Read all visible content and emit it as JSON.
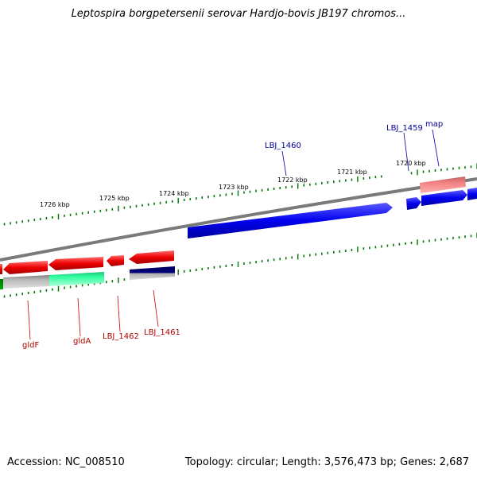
{
  "title": "Leptospira borgpetersenii serovar Hardjo-bovis JB197 chromos...",
  "footer": {
    "accession": "Accession: NC_008510",
    "summary": "Topology: circular; Length: 3,576,473 bp; Genes: 2,687"
  },
  "colors": {
    "forward_gene": "#0000ee",
    "reverse_gene": "#ee0000",
    "backbone": "#7a7a7a",
    "tick": "#007700",
    "label_forward": "#00009c",
    "label_reverse": "#b00000"
  },
  "scale_labels": [
    "1726 kbp",
    "1725 kbp",
    "1724 kbp",
    "1723 kbp",
    "1722 kbp",
    "1721 kbp",
    "1720 kbp"
  ],
  "gene_labels": {
    "forward": [
      "LBJ_1460",
      "LBJ_1459",
      "map"
    ],
    "reverse": [
      "gldF",
      "gldA",
      "LBJ_1462",
      "LBJ_1461"
    ]
  }
}
